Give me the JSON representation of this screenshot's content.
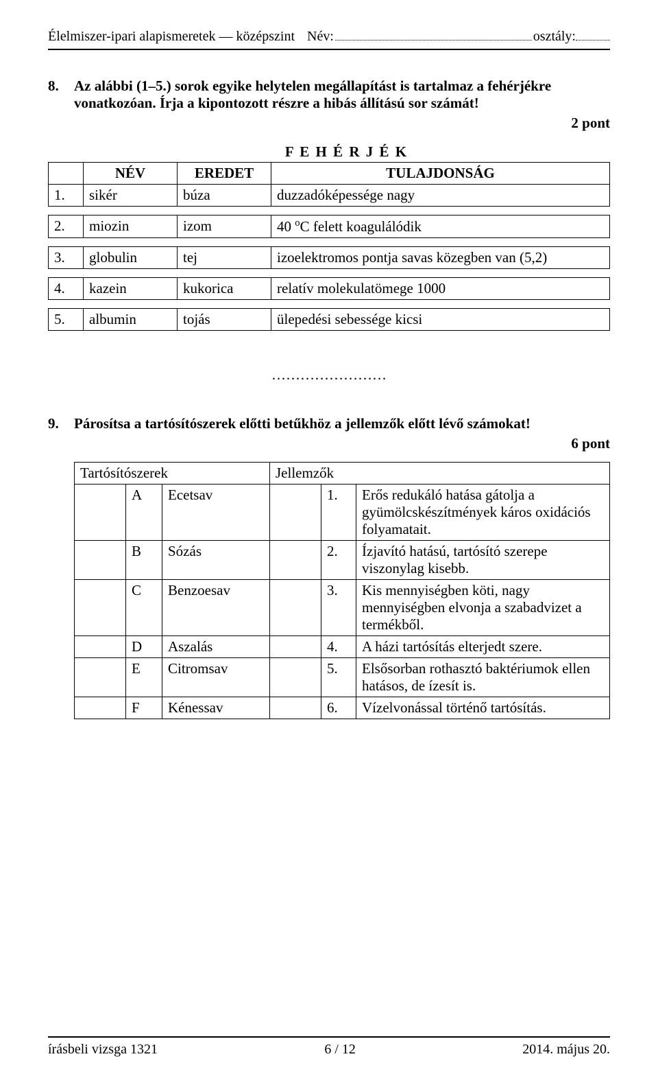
{
  "header": {
    "subject": "Élelmiszer-ipari alapismeretek — középszint",
    "name_label": "Név:",
    "class_label": "osztály:"
  },
  "q8": {
    "number": "8.",
    "text": "Az alábbi (1–5.) sorok egyike helytelen megállapítást is tartalmaz a fehérjékre vonatkozóan. Írja a kipontozott részre a hibás állítású sor számát!",
    "points": "2 pont",
    "super_header": "F E H É R J É K",
    "col_name": "NÉV",
    "col_origin": "EREDET",
    "col_prop": "TULAJDONSÁG",
    "rows": [
      {
        "n": "1.",
        "name": "sikér",
        "origin": "búza",
        "prop": "duzzadóképessége nagy"
      },
      {
        "n": "2.",
        "name": "miozin",
        "origin": "izom",
        "prop": "40 °C felett koagulálódik",
        "prop_html": "40 <sup>o</sup>C felett koagulálódik"
      },
      {
        "n": "3.",
        "name": "globulin",
        "origin": "tej",
        "prop": "izoelektromos pontja savas közegben van (5,2)"
      },
      {
        "n": "4.",
        "name": "kazein",
        "origin": "kukorica",
        "prop": "relatív molekulatömege 1000"
      },
      {
        "n": "5.",
        "name": "albumin",
        "origin": "tojás",
        "prop": "ülepedési sebessége kicsi"
      }
    ],
    "answer_dots": "……………………"
  },
  "q9": {
    "number": "9.",
    "text": "Párosítsa a tartósítószerek előtti betűkhöz a jellemzők előtt lévő számokat!",
    "points": "6 pont",
    "left_header": "Tartósítószerek",
    "right_header": "Jellemzők",
    "rows": [
      {
        "letter": "A",
        "name": "Ecetsav",
        "num": "1.",
        "desc": "Erős redukáló hatása gátolja a gyümölcskészítmények káros oxidációs folyamatait."
      },
      {
        "letter": "B",
        "name": "Sózás",
        "num": "2.",
        "desc": "Ízjavító hatású, tartósító szerepe viszonylag kisebb."
      },
      {
        "letter": "C",
        "name": "Benzoesav",
        "num": "3.",
        "desc": "Kis mennyiségben köti, nagy mennyiségben elvonja a szabadvizet a termékből."
      },
      {
        "letter": "D",
        "name": "Aszalás",
        "num": "4.",
        "desc": "A házi tartósítás elterjedt szere."
      },
      {
        "letter": "E",
        "name": "Citromsav",
        "num": "5.",
        "desc": "Elsősorban rothasztó baktériumok ellen hatásos, de ízesít is."
      },
      {
        "letter": "F",
        "name": "Kénessav",
        "num": "6.",
        "desc": "Vízelvonással történő tartósítás."
      }
    ]
  },
  "footer": {
    "left": "írásbeli vizsga 1321",
    "center": "6 / 12",
    "right": "2014. május 20."
  }
}
